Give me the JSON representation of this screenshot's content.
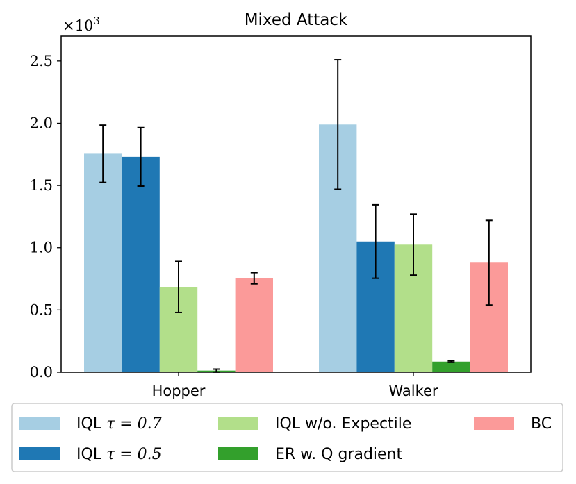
{
  "chart_data": {
    "type": "bar",
    "title": "Mixed Attack",
    "multiplier_label": "×10",
    "multiplier_exponent": "3",
    "categories": [
      "Hopper",
      "Walker"
    ],
    "ylim": [
      0,
      2.7
    ],
    "yticks": [
      {
        "value": 0.0,
        "label": "0.0"
      },
      {
        "value": 0.5,
        "label": "0.5"
      },
      {
        "value": 1.0,
        "label": "1.0"
      },
      {
        "value": 1.5,
        "label": "1.5"
      },
      {
        "value": 2.0,
        "label": "2.0"
      },
      {
        "value": 2.5,
        "label": "2.5"
      }
    ],
    "legend_position": "bottom",
    "series": [
      {
        "name": "IQL τ = 0.7",
        "name_prefix": "IQL ",
        "name_math": "τ = 0.7",
        "color": "#a6cee3",
        "values": [
          1.755,
          1.99
        ],
        "errors": [
          0.23,
          0.52
        ]
      },
      {
        "name": "IQL τ = 0.5",
        "name_prefix": "IQL ",
        "name_math": "τ = 0.5",
        "color": "#1f78b4",
        "values": [
          1.73,
          1.05
        ],
        "errors": [
          0.235,
          0.295
        ]
      },
      {
        "name": "IQL w/o. Expectile",
        "name_prefix": "IQL w/o. Expectile",
        "name_math": "",
        "color": "#b2df8a",
        "values": [
          0.685,
          1.025
        ],
        "errors": [
          0.205,
          0.245
        ]
      },
      {
        "name": "ER w. Q gradient",
        "name_prefix": "ER w. Q gradient",
        "name_math": "",
        "color": "#33a02c",
        "values": [
          0.013,
          0.085
        ],
        "errors": [
          0.012,
          0.006
        ]
      },
      {
        "name": "BC",
        "name_prefix": "BC",
        "name_math": "",
        "color": "#fb9a99",
        "values": [
          0.755,
          0.88
        ],
        "errors": [
          0.045,
          0.34
        ]
      }
    ]
  }
}
